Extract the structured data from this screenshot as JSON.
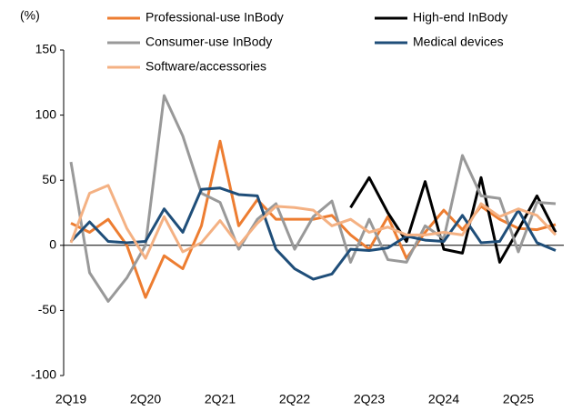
{
  "chart_data": {
    "type": "line",
    "y_label": "(%)",
    "categories": [
      "2Q19",
      null,
      null,
      null,
      "2Q20",
      null,
      null,
      null,
      "2Q21",
      null,
      null,
      null,
      "2Q22",
      null,
      null,
      null,
      "2Q23",
      null,
      null,
      null,
      "2Q24",
      null,
      null,
      null,
      "2Q25",
      null,
      null
    ],
    "series": [
      {
        "name": "Professional-use InBody",
        "color": "#ed7d31",
        "values": [
          17,
          10,
          20,
          0,
          -40,
          -8,
          -18,
          15,
          80,
          15,
          35,
          20,
          20,
          20,
          23,
          8,
          -3,
          22,
          -10,
          10,
          27,
          12,
          30,
          20,
          13,
          12,
          16
        ]
      },
      {
        "name": "High-end InBody",
        "color": "#000000",
        "values": [
          null,
          null,
          null,
          null,
          null,
          null,
          null,
          null,
          null,
          null,
          null,
          null,
          null,
          null,
          null,
          29,
          52,
          25,
          3,
          49,
          -3,
          -6,
          52,
          -13,
          12,
          38,
          10
        ]
      },
      {
        "name": "Consumer-use InBody",
        "color": "#999999",
        "values": [
          64,
          -21,
          -43,
          -25,
          0,
          115,
          84,
          40,
          33,
          -3,
          20,
          32,
          -3,
          22,
          34,
          -13,
          20,
          -11,
          -13,
          15,
          5,
          69,
          38,
          36,
          -5,
          33,
          32
        ]
      },
      {
        "name": "Medical devices",
        "color": "#1f4e79",
        "values": [
          3,
          18,
          3,
          2,
          3,
          28,
          10,
          43,
          44,
          39,
          38,
          -3,
          -18,
          -26,
          -22,
          -3,
          -4,
          -2,
          7,
          4,
          3,
          23,
          2,
          3,
          27,
          2,
          -4
        ]
      },
      {
        "name": "Software/accessories",
        "color": "#f4b183",
        "values": [
          2,
          40,
          46,
          13,
          -10,
          22,
          -5,
          2,
          19,
          0,
          17,
          30,
          29,
          27,
          15,
          20,
          10,
          14,
          8,
          8,
          10,
          8,
          32,
          22,
          28,
          23,
          8
        ]
      }
    ],
    "ylim": [
      -100,
      150
    ],
    "yticks": [
      -100,
      -50,
      0,
      50,
      100,
      150
    ]
  }
}
